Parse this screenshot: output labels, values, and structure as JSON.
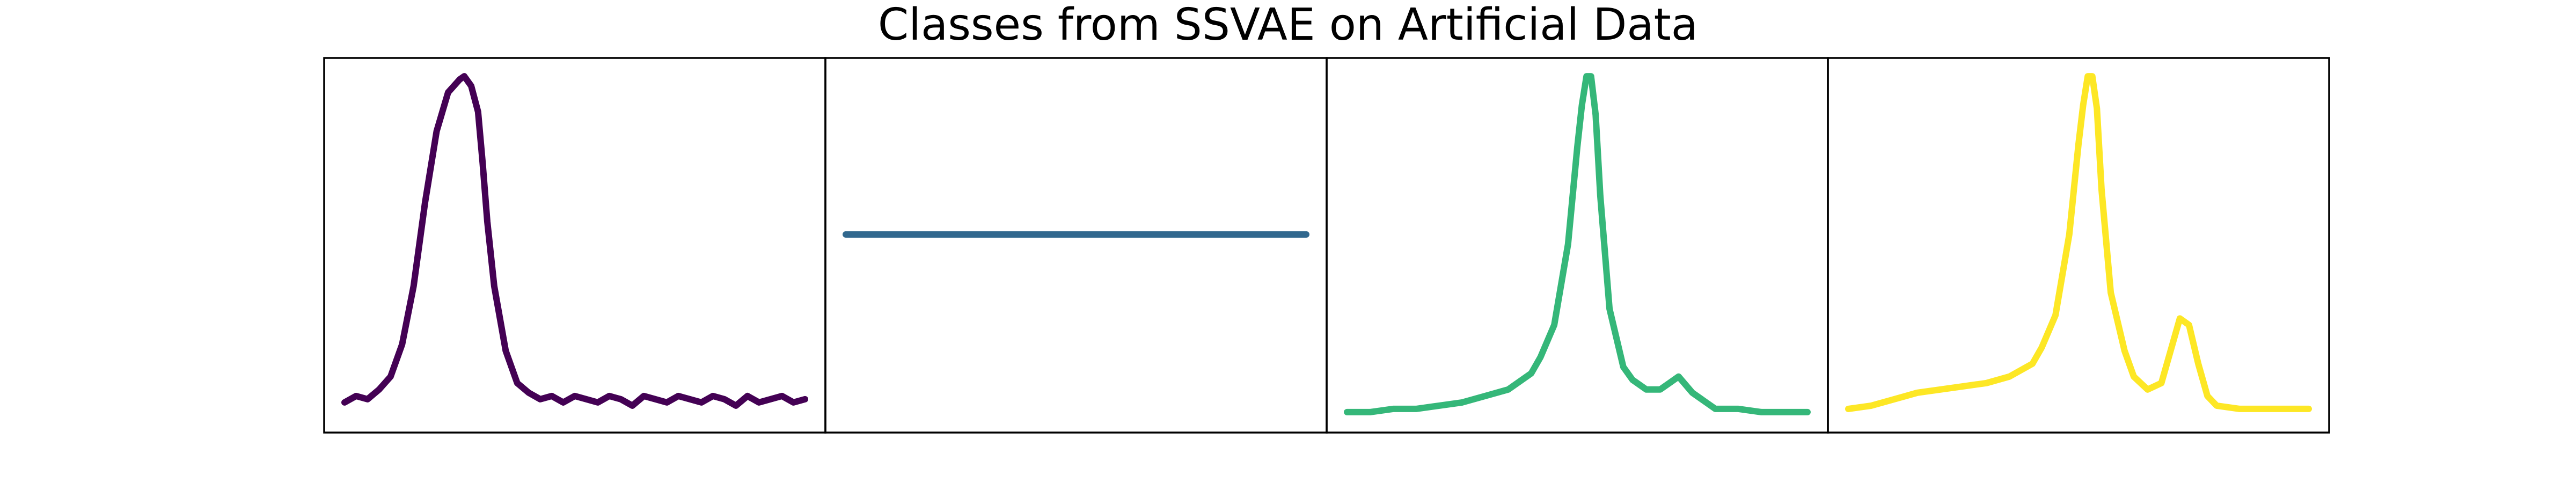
{
  "chart_data": {
    "type": "line",
    "title": "Classes from SSVAE on Artificial Data",
    "xlabel": "",
    "ylabel": "",
    "grid": false,
    "legend": "none",
    "shared_ylim": [
      0,
      1.1
    ],
    "panels": [
      {
        "name": "",
        "color": "#440154",
        "x": [
          0,
          0.025,
          0.05,
          0.075,
          0.1,
          0.125,
          0.15,
          0.175,
          0.2,
          0.225,
          0.25,
          0.26,
          0.275,
          0.29,
          0.3,
          0.31,
          0.325,
          0.35,
          0.375,
          0.4,
          0.425,
          0.45,
          0.475,
          0.5,
          0.525,
          0.55,
          0.575,
          0.6,
          0.625,
          0.65,
          0.675,
          0.7,
          0.725,
          0.75,
          0.775,
          0.8,
          0.825,
          0.85,
          0.875,
          0.9,
          0.925,
          0.95,
          0.975,
          1.0
        ],
        "y": [
          0.06,
          0.08,
          0.07,
          0.1,
          0.14,
          0.24,
          0.42,
          0.68,
          0.9,
          1.02,
          1.06,
          1.07,
          1.04,
          0.96,
          0.8,
          0.62,
          0.42,
          0.22,
          0.12,
          0.09,
          0.07,
          0.08,
          0.06,
          0.08,
          0.07,
          0.06,
          0.08,
          0.07,
          0.05,
          0.08,
          0.07,
          0.06,
          0.08,
          0.07,
          0.06,
          0.08,
          0.07,
          0.05,
          0.08,
          0.06,
          0.07,
          0.08,
          0.06,
          0.07
        ]
      },
      {
        "name": "",
        "color": "#31688e",
        "x": [
          0,
          1.0
        ],
        "y": [
          0.58,
          0.58
        ]
      },
      {
        "name": "",
        "color": "#35b779",
        "x": [
          0,
          0.05,
          0.1,
          0.15,
          0.2,
          0.25,
          0.3,
          0.35,
          0.4,
          0.42,
          0.45,
          0.48,
          0.5,
          0.51,
          0.52,
          0.53,
          0.54,
          0.55,
          0.57,
          0.6,
          0.62,
          0.65,
          0.68,
          0.7,
          0.72,
          0.75,
          0.78,
          0.8,
          0.85,
          0.9,
          0.95,
          1.0
        ],
        "y": [
          0.03,
          0.03,
          0.04,
          0.04,
          0.05,
          0.06,
          0.08,
          0.1,
          0.15,
          0.2,
          0.3,
          0.55,
          0.85,
          0.98,
          1.07,
          1.07,
          0.95,
          0.7,
          0.35,
          0.17,
          0.13,
          0.1,
          0.1,
          0.12,
          0.14,
          0.09,
          0.06,
          0.04,
          0.04,
          0.03,
          0.03,
          0.03
        ]
      },
      {
        "name": "",
        "color": "#fde725",
        "x": [
          0,
          0.05,
          0.1,
          0.15,
          0.2,
          0.25,
          0.3,
          0.35,
          0.4,
          0.42,
          0.45,
          0.48,
          0.5,
          0.51,
          0.52,
          0.53,
          0.54,
          0.55,
          0.57,
          0.6,
          0.62,
          0.65,
          0.68,
          0.7,
          0.72,
          0.74,
          0.76,
          0.78,
          0.8,
          0.85,
          0.9,
          0.95,
          1.0
        ],
        "y": [
          0.04,
          0.05,
          0.07,
          0.09,
          0.1,
          0.11,
          0.12,
          0.14,
          0.18,
          0.23,
          0.33,
          0.58,
          0.86,
          0.98,
          1.07,
          1.07,
          0.97,
          0.72,
          0.4,
          0.22,
          0.14,
          0.1,
          0.12,
          0.22,
          0.32,
          0.3,
          0.18,
          0.08,
          0.05,
          0.04,
          0.04,
          0.04,
          0.04
        ]
      }
    ]
  }
}
